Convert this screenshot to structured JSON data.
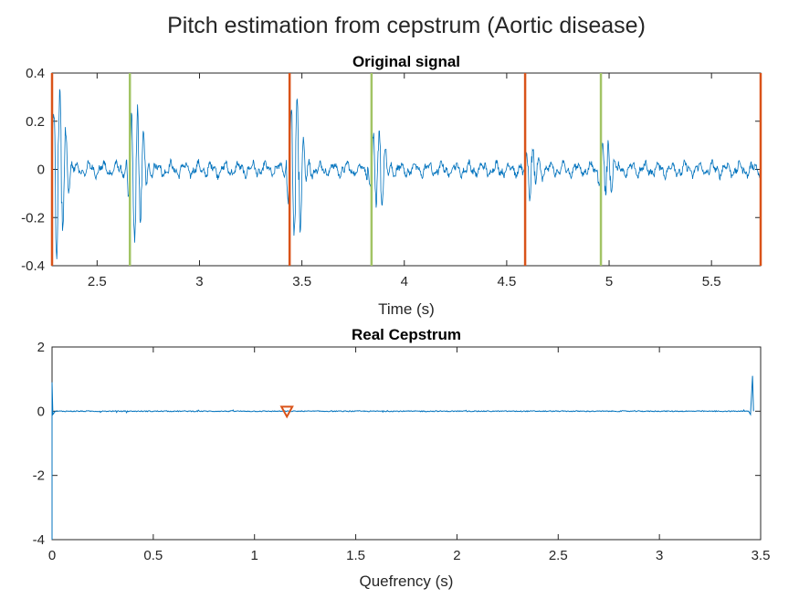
{
  "figure": {
    "title": "Pitch estimation from cepstrum (Aortic disease)"
  },
  "colors": {
    "signal": "#0072BD",
    "marker_red": "#D95319",
    "marker_green": "#A2C465",
    "axis": "#262626"
  },
  "chart_data": [
    {
      "type": "line",
      "title": "Original signal",
      "xlabel": "Time (s)",
      "ylabel": "",
      "xlim": [
        2.28,
        5.74
      ],
      "ylim": [
        -0.4,
        0.4
      ],
      "xticks": [
        2.5,
        3,
        3.5,
        4,
        4.5,
        5,
        5.5
      ],
      "xtick_labels": [
        "2.5",
        "3",
        "3.5",
        "4",
        "4.5",
        "5",
        "5.5"
      ],
      "yticks": [
        -0.4,
        -0.2,
        0,
        0.2,
        0.4
      ],
      "ytick_labels": [
        "-0.4",
        "-0.2",
        "0",
        "0.2",
        "0.4"
      ],
      "grid": false,
      "vlines_red": [
        2.28,
        3.44,
        4.59,
        5.74
      ],
      "vlines_green": [
        2.66,
        3.84,
        4.96
      ],
      "bursts": [
        {
          "t": 2.28,
          "amp": 0.35
        },
        {
          "t": 2.66,
          "amp": 0.28
        },
        {
          "t": 3.44,
          "amp": 0.3
        },
        {
          "t": 3.84,
          "amp": 0.18
        },
        {
          "t": 4.59,
          "amp": 0.12
        },
        {
          "t": 4.96,
          "amp": 0.12
        }
      ],
      "series": [
        {
          "name": "",
          "description_values": "heart sound signal, amplitude within ±0.4"
        }
      ]
    },
    {
      "type": "line",
      "title": "Real Cepstrum",
      "xlabel": "Quefrency (s)",
      "ylabel": "",
      "xlim": [
        0,
        3.5
      ],
      "ylim": [
        -4,
        2
      ],
      "xticks": [
        0,
        0.5,
        1,
        1.5,
        2,
        2.5,
        3,
        3.5
      ],
      "xtick_labels": [
        "0",
        "0.5",
        "1",
        "1.5",
        "2",
        "2.5",
        "3",
        "3.5"
      ],
      "yticks": [
        -4,
        -2,
        0,
        2
      ],
      "ytick_labels": [
        "-4",
        "-2",
        "0",
        "2"
      ],
      "grid": false,
      "peak_marker": {
        "x": 1.16,
        "y": 0
      },
      "features": {
        "start_drop": -4,
        "end_spike": 1.1
      }
    }
  ]
}
